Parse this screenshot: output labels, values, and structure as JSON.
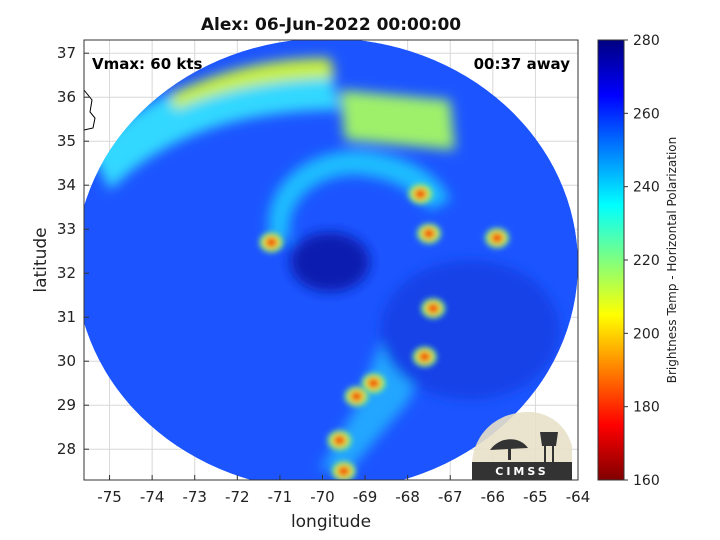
{
  "chart_data": {
    "type": "heatmap",
    "title": "Alex: 06-Jun-2022 00:00:00",
    "xlabel": "longitude",
    "ylabel": "latitude",
    "xlim": [
      -75.6,
      -64
    ],
    "ylim": [
      27.3,
      37.3
    ],
    "x_ticks": [
      "-75",
      "-74",
      "-73",
      "-72",
      "-71",
      "-70",
      "-69",
      "-68",
      "-67",
      "-66",
      "-65",
      "-64"
    ],
    "y_ticks": [
      "37",
      "36",
      "35",
      "34",
      "33",
      "32",
      "31",
      "30",
      "29",
      "28"
    ],
    "grid": true,
    "annotations": {
      "vmax": "Vmax: 60 kts",
      "time_offset": "00:37 away"
    },
    "colorbar": {
      "label": "Brightness Temp - Horizontal Polarization",
      "range": [
        160,
        280
      ],
      "ticks": [
        "280",
        "260",
        "240",
        "220",
        "200",
        "180",
        "160"
      ],
      "colormap": "jet"
    },
    "swath": {
      "center_lon": -69.9,
      "center_lat": 32.2,
      "radius_deg_lon": 5.9
    },
    "storm_center": {
      "lon": -69.9,
      "lat": 32.2
    },
    "cold_features_lon_lat": [
      [
        -71.2,
        32.7
      ],
      [
        -67.5,
        32.9
      ],
      [
        -67.7,
        33.8
      ],
      [
        -65.9,
        32.8
      ],
      [
        -67.4,
        31.2
      ],
      [
        -67.6,
        30.1
      ],
      [
        -68.8,
        29.5
      ],
      [
        -69.2,
        29.2
      ],
      [
        -69.6,
        28.2
      ],
      [
        -69.5,
        27.5
      ]
    ]
  },
  "logo": {
    "text": "CIMSS"
  }
}
